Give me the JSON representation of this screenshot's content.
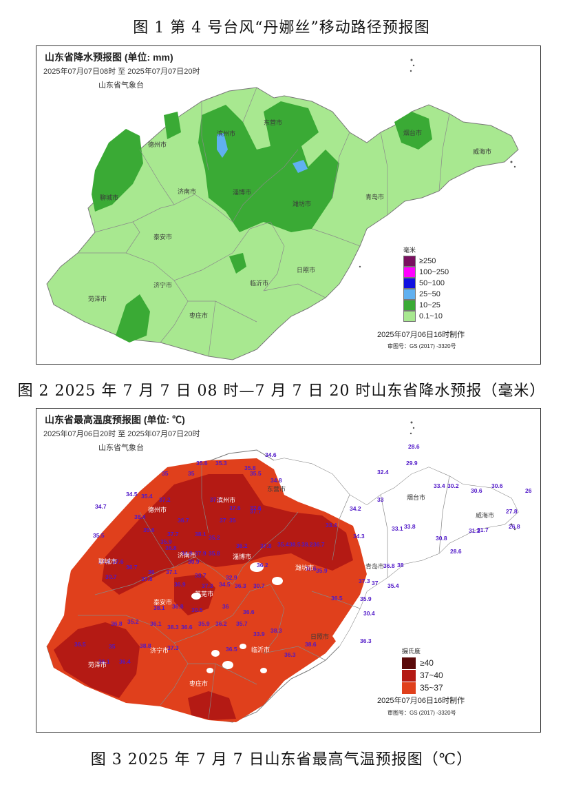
{
  "figure1": {
    "caption": "图 1 第 4 号台风“丹娜丝”移动路径预报图"
  },
  "figure2": {
    "caption": "图 2 2025 年 7 月 7 日 08 时—7 月 7 日 20 时山东省降水预报（毫米）",
    "map_title": "山东省降水预报图 (单位: mm)",
    "period": "2025年07月07日08时   至   2025年07月07日20时",
    "agency": "山东省气象台",
    "legend_unit": "毫米",
    "legend": [
      {
        "label": "≥250",
        "color": "#7a1060"
      },
      {
        "label": "100~250",
        "color": "#ff00ff"
      },
      {
        "label": "50~100",
        "color": "#1010e0"
      },
      {
        "label": "25~50",
        "color": "#60b0f0"
      },
      {
        "label": "10~25",
        "color": "#3aaa35"
      },
      {
        "label": "0.1~10",
        "color": "#a8e890"
      }
    ],
    "made": "2025年07月06日16时制作",
    "review": "审图号：GS (2017) -3320号",
    "cities": [
      "德州市",
      "滨州市",
      "东营市",
      "烟台市",
      "威海市",
      "聊城市",
      "济南市",
      "淄博市",
      "潍坊市",
      "青岛市",
      "泰安市",
      "济宁市",
      "临沂市",
      "日照市",
      "菏泽市",
      "枣庄市"
    ]
  },
  "figure3": {
    "caption": "图 3  2025 年 7 月 7 日山东省最高气温预报图（℃）",
    "map_title": "山东省最高温度预报图 (单位: ℃)",
    "period": "2025年07月06日20时   至   2025年07月07日20时",
    "agency": "山东省气象台",
    "legend_unit": "摄氏度",
    "legend": [
      {
        "label": "≥40",
        "color": "#5a0a0a"
      },
      {
        "label": "37~40",
        "color": "#b41a14"
      },
      {
        "label": "35~37",
        "color": "#e0401c"
      }
    ],
    "made": "2025年07月06日16时制作",
    "review": "审图号：GS (2017) -3320号",
    "cities": [
      "滨州市",
      "东营市",
      "烟台市",
      "威海市",
      "德州市",
      "聊城市",
      "济南市",
      "淄博市",
      "潍坊市",
      "青岛市",
      "泰安市",
      "莱芜市",
      "济宁市",
      "临沂市",
      "日照市",
      "菏泽市",
      "枣庄市"
    ],
    "temperatures": [
      "34.6",
      "28.6",
      "32.4",
      "29.9",
      "35.6",
      "35.3",
      "35",
      "35",
      "35.8",
      "35.5",
      "34.8",
      "33.4",
      "30.2",
      "30.6",
      "30.6",
      "26",
      "34.5",
      "35.4",
      "37.2",
      "37.1",
      "37.6",
      "37.6",
      "34.7",
      "33",
      "34.2",
      "31.7",
      "27.8",
      "37.7",
      "35",
      "33.4",
      "38.4",
      "36.7",
      "37",
      "33.1",
      "33.8",
      "35.5",
      "35.6",
      "37.7",
      "38.1",
      "35.2",
      "34.3",
      "31.2",
      "26.8",
      "35.9",
      "36.2",
      "37.8",
      "35.4",
      "38.5",
      "38.2",
      "36.7",
      "30.8",
      "28.6",
      "37.4",
      "37.6",
      "36.7",
      "36.8",
      "34.9",
      "37.9",
      "35.8",
      "30.9",
      "36",
      "37.1",
      "33.7",
      "32.9",
      "36.2",
      "36.6",
      "35.9",
      "36.8",
      "38",
      "30.7",
      "37.8",
      "36.9",
      "34.5",
      "37.3",
      "36.3",
      "30.7",
      "37.3",
      "37",
      "36.5",
      "35.9",
      "35.4",
      "38.1",
      "36.8",
      "30.5",
      "36",
      "36.6",
      "30.4",
      "36.8",
      "35.2",
      "36.1",
      "38.3",
      "36.6",
      "35.9",
      "36.2",
      "35.7",
      "33.9",
      "38.3",
      "38.6",
      "36.3",
      "36.5",
      "35",
      "38.8",
      "37.3",
      "36.5",
      "36.3",
      "36.1",
      "36.4"
    ]
  }
}
